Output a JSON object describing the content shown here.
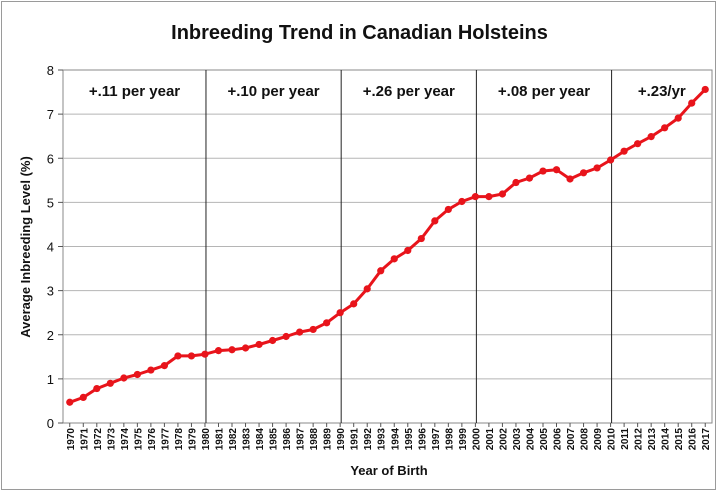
{
  "chart_data": {
    "type": "line",
    "title": "Inbreeding Trend in Canadian Holsteins",
    "xlabel": "Year of Birth",
    "ylabel": "Average Inbreeding Level (%)",
    "ylim": [
      0,
      8
    ],
    "yticks": [
      "0",
      "1",
      "2",
      "3",
      "4",
      "5",
      "6",
      "7",
      "8"
    ],
    "grid": true,
    "series": [
      {
        "color": "#e8141b",
        "x": [
          1970,
          1971,
          1972,
          1973,
          1974,
          1975,
          1976,
          1977,
          1978,
          1979,
          1980,
          1981,
          1982,
          1983,
          1984,
          1985,
          1986,
          1987,
          1988,
          1989,
          1990,
          1991,
          1992,
          1993,
          1994,
          1995,
          1996,
          1997,
          1998,
          1999,
          2000,
          2001,
          2002,
          2003,
          2004,
          2005,
          2006,
          2007,
          2008,
          2009,
          2010,
          2011,
          2012,
          2013,
          2014,
          2015,
          2016,
          2017
        ],
        "values": [
          0.47,
          0.58,
          0.78,
          0.9,
          1.02,
          1.1,
          1.2,
          1.3,
          1.52,
          1.52,
          1.56,
          1.64,
          1.66,
          1.7,
          1.78,
          1.87,
          1.96,
          2.06,
          2.12,
          2.27,
          2.5,
          2.7,
          3.04,
          3.45,
          3.72,
          3.91,
          4.18,
          4.58,
          4.84,
          5.02,
          5.13,
          5.13,
          5.19,
          5.45,
          5.55,
          5.71,
          5.74,
          5.53,
          5.67,
          5.78,
          5.96,
          6.16,
          6.33,
          6.49,
          6.69,
          6.91,
          7.25,
          7.56
        ]
      }
    ],
    "eras": [
      {
        "label": "+.11 per year",
        "from": 1970,
        "to": 1980
      },
      {
        "label": "+.10 per year",
        "from": 1980,
        "to": 1990
      },
      {
        "label": "+.26 per year",
        "from": 1990,
        "to": 2000
      },
      {
        "label": "+.08 per year",
        "from": 2000,
        "to": 2010
      },
      {
        "label": "+.23/yr",
        "from": 2010,
        "to": 2017
      }
    ]
  }
}
